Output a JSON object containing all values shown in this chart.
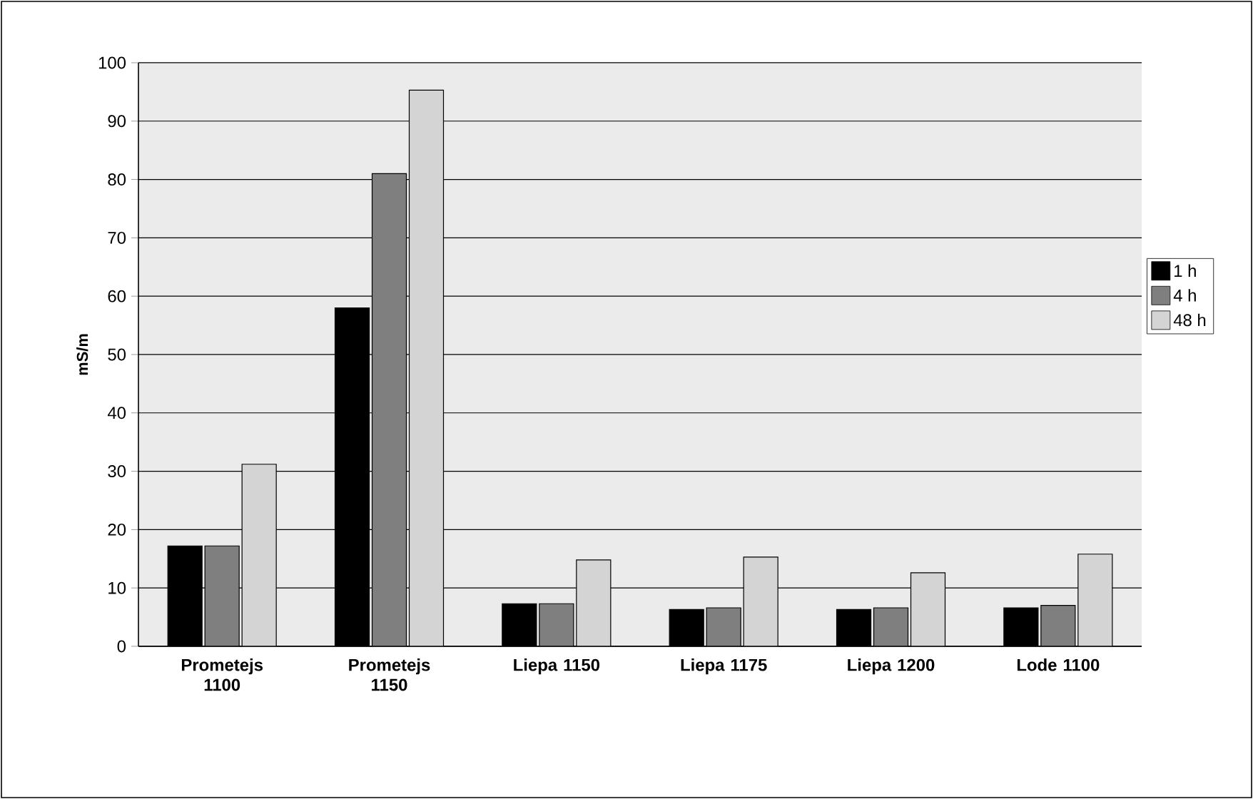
{
  "chart_data": {
    "type": "bar",
    "ylabel": "mS/m",
    "categories": [
      "Prometejs 1100",
      "Prometejs 1150",
      "Liepa 1150",
      "Liepa 1175",
      "Liepa 1200",
      "Lode 1100"
    ],
    "series": [
      {
        "name": "1 h",
        "color": "#000000",
        "values": [
          17.2,
          58,
          7.3,
          6.3,
          6.3,
          6.6
        ]
      },
      {
        "name": "4 h",
        "color": "#7f7f7f",
        "values": [
          17.2,
          81,
          7.3,
          6.6,
          6.6,
          7.0
        ]
      },
      {
        "name": "48 h",
        "color": "#d4d4d4",
        "values": [
          31.2,
          95.3,
          14.8,
          15.3,
          12.6,
          15.8
        ]
      }
    ],
    "ylim": [
      0,
      100
    ],
    "yticks": [
      0,
      10,
      20,
      30,
      40,
      50,
      60,
      70,
      80,
      90,
      100
    ],
    "grid": "y",
    "legend": "right"
  }
}
